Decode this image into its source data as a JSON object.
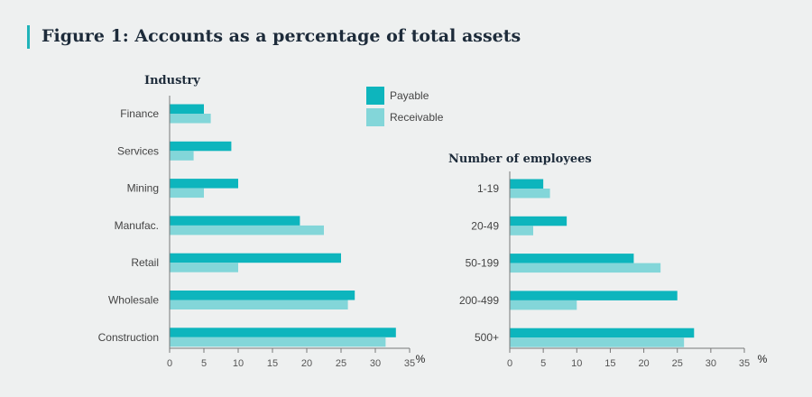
{
  "title": "Figure 1: Accounts as a percentage of total assets",
  "colors": {
    "payable": "#0db5bd",
    "receivable": "#83d6d9",
    "axis": "#777777"
  },
  "legend": {
    "payable": "Payable",
    "receivable": "Receivable"
  },
  "chart_data": [
    {
      "type": "bar",
      "orientation": "horizontal",
      "title": "Industry",
      "xlabel": "%",
      "xlim": [
        0,
        35
      ],
      "xticks": [
        0,
        5,
        10,
        15,
        20,
        25,
        30,
        35
      ],
      "categories": [
        "Finance",
        "Services",
        "Mining",
        "Manufac.",
        "Retail",
        "Wholesale",
        "Construction"
      ],
      "series": [
        {
          "name": "Payable",
          "values": [
            5,
            9,
            10,
            19,
            25,
            27,
            33
          ]
        },
        {
          "name": "Receivable",
          "values": [
            6,
            3.5,
            5,
            22.5,
            10,
            26,
            31.5
          ]
        }
      ]
    },
    {
      "type": "bar",
      "orientation": "horizontal",
      "title": "Number of employees",
      "xlabel": "%",
      "xlim": [
        0,
        35
      ],
      "xticks": [
        0,
        5,
        10,
        15,
        20,
        25,
        30,
        35
      ],
      "categories": [
        "1-19",
        "20-49",
        "50-199",
        "200-499",
        "500+"
      ],
      "series": [
        {
          "name": "Payable",
          "values": [
            5,
            8.5,
            18.5,
            25,
            27.5
          ]
        },
        {
          "name": "Receivable",
          "values": [
            6,
            3.5,
            22.5,
            10,
            26
          ]
        }
      ]
    }
  ]
}
